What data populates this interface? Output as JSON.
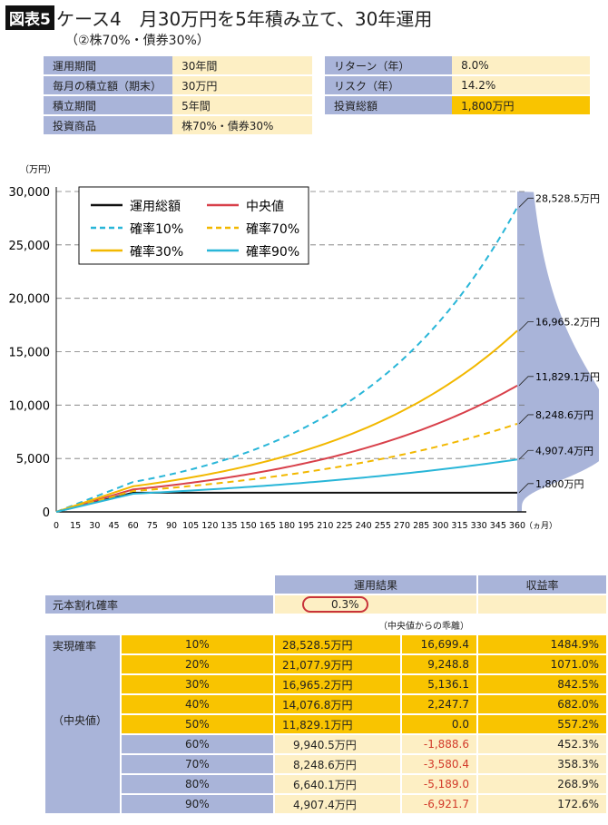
{
  "header": {
    "badge": "図表5",
    "title": "ケース4　月30万円を5年積み立て、30年運用",
    "subtitle": "（②株70%・債券30%）"
  },
  "info_left": [
    {
      "label": "運用期間",
      "value": "30年間"
    },
    {
      "label": "毎月の積立額（期末）",
      "value": "30万円"
    },
    {
      "label": "積立期間",
      "value": "5年間"
    },
    {
      "label": "投資商品",
      "value": "株70%・債券30%"
    }
  ],
  "info_right": [
    {
      "label": "リターン（年）",
      "value": "8.0%"
    },
    {
      "label": "リスク（年）",
      "value": "14.2%"
    },
    {
      "label": "投資総額",
      "value": "1,800万円"
    }
  ],
  "chart_data": {
    "type": "line",
    "ylabel": "（万円）",
    "xunit": "（ヵ月）",
    "xlim": [
      0,
      360
    ],
    "ylim": [
      0,
      30000
    ],
    "xticks": [
      0,
      15,
      30,
      45,
      60,
      75,
      90,
      105,
      120,
      135,
      150,
      165,
      180,
      195,
      210,
      225,
      240,
      255,
      270,
      285,
      300,
      315,
      330,
      345,
      360
    ],
    "yticks": [
      "0",
      "5,000",
      "10,000",
      "15,000",
      "20,000",
      "25,000",
      "30,000"
    ],
    "grid": "horizontal dashed",
    "legend": "top-left",
    "series": [
      {
        "name": "運用総額",
        "color": "#111111",
        "dash": false,
        "at60": 1800,
        "end": 1800
      },
      {
        "name": "中央値",
        "color": "#d8404a",
        "dash": false,
        "at60": 2100,
        "end": 11829.1
      },
      {
        "name": "確率10%",
        "color": "#29b6d8",
        "dash": true,
        "at60": 2800,
        "end": 28528.5
      },
      {
        "name": "確率70%",
        "color": "#f2b800",
        "dash": true,
        "at60": 1950,
        "end": 8248.6
      },
      {
        "name": "確率30%",
        "color": "#f2b800",
        "dash": false,
        "at60": 2400,
        "end": 16965.2
      },
      {
        "name": "確率90%",
        "color": "#29b6d8",
        "dash": false,
        "at60": 1700,
        "end": 4907.4
      }
    ],
    "end_labels": [
      "28,528.5万円",
      "16,965.2万円",
      "11,829.1万円",
      "8,248.6万円",
      "4,907.4万円",
      "1,800万円"
    ],
    "end_values": [
      28528.5,
      16965.2,
      11829.1,
      8248.6,
      4907.4,
      1800
    ],
    "distribution_color": "#a9b4d9"
  },
  "results": {
    "header_result": "運用結果",
    "header_yield": "収益率",
    "loss_label": "元本割れ確率",
    "loss_value": "0.3%",
    "deviation_note": "（中央値からの乖離）",
    "row_label_top": "実現確率",
    "row_label_mid": "（中央値）",
    "rows": [
      {
        "p": "10%",
        "amount": "28,528.5万円",
        "dev": "16,699.4",
        "yield": "1484.9%"
      },
      {
        "p": "20%",
        "amount": "21,077.9万円",
        "dev": "9,248.8",
        "yield": "1071.0%"
      },
      {
        "p": "30%",
        "amount": "16,965.2万円",
        "dev": "5,136.1",
        "yield": "842.5%"
      },
      {
        "p": "40%",
        "amount": "14,076.8万円",
        "dev": "2,247.7",
        "yield": "682.0%"
      },
      {
        "p": "50%",
        "amount": "11,829.1万円",
        "dev": "0.0",
        "yield": "557.2%"
      },
      {
        "p": "60%",
        "amount": "9,940.5万円",
        "dev": "-1,888.6",
        "yield": "452.3%"
      },
      {
        "p": "70%",
        "amount": "8,248.6万円",
        "dev": "-3,580.4",
        "yield": "358.3%"
      },
      {
        "p": "80%",
        "amount": "6,640.1万円",
        "dev": "-5,189.0",
        "yield": "268.9%"
      },
      {
        "p": "90%",
        "amount": "4,907.4万円",
        "dev": "-6,921.7",
        "yield": "172.6%"
      }
    ]
  }
}
